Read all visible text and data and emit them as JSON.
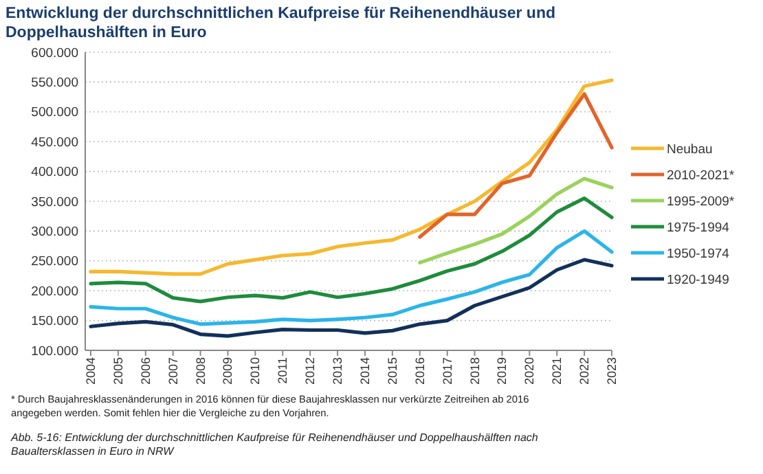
{
  "chart_data": {
    "type": "line",
    "title": "Entwicklung der durchschnittlichen Kaufpreise für Reihenendhäuser und Doppelhaushälften in Euro",
    "categories": [
      "2004",
      "2005",
      "2006",
      "2007",
      "2008",
      "2009",
      "2010",
      "2011",
      "2012",
      "2013",
      "2014",
      "2015",
      "2016",
      "2017",
      "2018",
      "2019",
      "2020",
      "2021",
      "2022",
      "2023"
    ],
    "series": [
      {
        "name": "Neubau",
        "color": "#f5b82e",
        "values": [
          232000,
          232000,
          230000,
          228000,
          228000,
          245000,
          252000,
          259000,
          262000,
          274000,
          280000,
          285000,
          303000,
          328000,
          350000,
          383000,
          415000,
          470000,
          543000,
          553000
        ]
      },
      {
        "name": "2010-2021*",
        "color": "#e2642a",
        "values": [
          null,
          null,
          null,
          null,
          null,
          null,
          null,
          null,
          null,
          null,
          null,
          null,
          290000,
          328000,
          328000,
          380000,
          393000,
          465000,
          530000,
          440000
        ]
      },
      {
        "name": "1995-2009*",
        "color": "#9ad25a",
        "values": [
          null,
          null,
          null,
          null,
          null,
          null,
          null,
          null,
          null,
          null,
          null,
          null,
          247000,
          263000,
          278000,
          295000,
          325000,
          362000,
          388000,
          373000
        ]
      },
      {
        "name": "1975-1994",
        "color": "#1e8c3c",
        "values": [
          212000,
          214000,
          212000,
          188000,
          182000,
          189000,
          192000,
          188000,
          198000,
          189000,
          195000,
          203000,
          217000,
          233000,
          245000,
          266000,
          293000,
          332000,
          355000,
          323000
        ]
      },
      {
        "name": "1950-1974",
        "color": "#2bb5e8",
        "values": [
          173000,
          170000,
          170000,
          155000,
          144000,
          146000,
          148000,
          152000,
          150000,
          152000,
          155000,
          160000,
          175000,
          186000,
          198000,
          214000,
          227000,
          272000,
          300000,
          265000
        ]
      },
      {
        "name": "1920-1949",
        "color": "#12305a",
        "values": [
          140000,
          145000,
          148000,
          143000,
          127000,
          124000,
          130000,
          135000,
          134000,
          134000,
          129000,
          133000,
          144000,
          150000,
          175000,
          190000,
          205000,
          235000,
          252000,
          242000
        ]
      }
    ],
    "ylim": [
      100000,
      600000
    ],
    "yticks": [
      {
        "value": 100000,
        "label": "100.000"
      },
      {
        "value": 150000,
        "label": "150.000"
      },
      {
        "value": 200000,
        "label": "200.000"
      },
      {
        "value": 250000,
        "label": "250.000"
      },
      {
        "value": 300000,
        "label": "300.000"
      },
      {
        "value": 350000,
        "label": "350.000"
      },
      {
        "value": 400000,
        "label": "400.000"
      },
      {
        "value": 450000,
        "label": "450.000"
      },
      {
        "value": 500000,
        "label": "500.000"
      },
      {
        "value": 550000,
        "label": "550.000"
      },
      {
        "value": 600000,
        "label": "600.000"
      }
    ],
    "grid": "y",
    "legend": "right",
    "line_style": "solid",
    "annotations": [
      "* Durch Baujahresklassenänderungen in 2016 können für diese Baujahresklassen nur verkürzte Zeitreihen ab 2016 angegeben werden. Somit fehlen hier die Vergleiche zu den Vorjahren.",
      "Abb. 5-16: Entwicklung der durchschnittlichen Kaufpreise für Reihenendhäuser und Doppelhaushälften nach Baualtersklassen in Euro in NRW"
    ]
  }
}
